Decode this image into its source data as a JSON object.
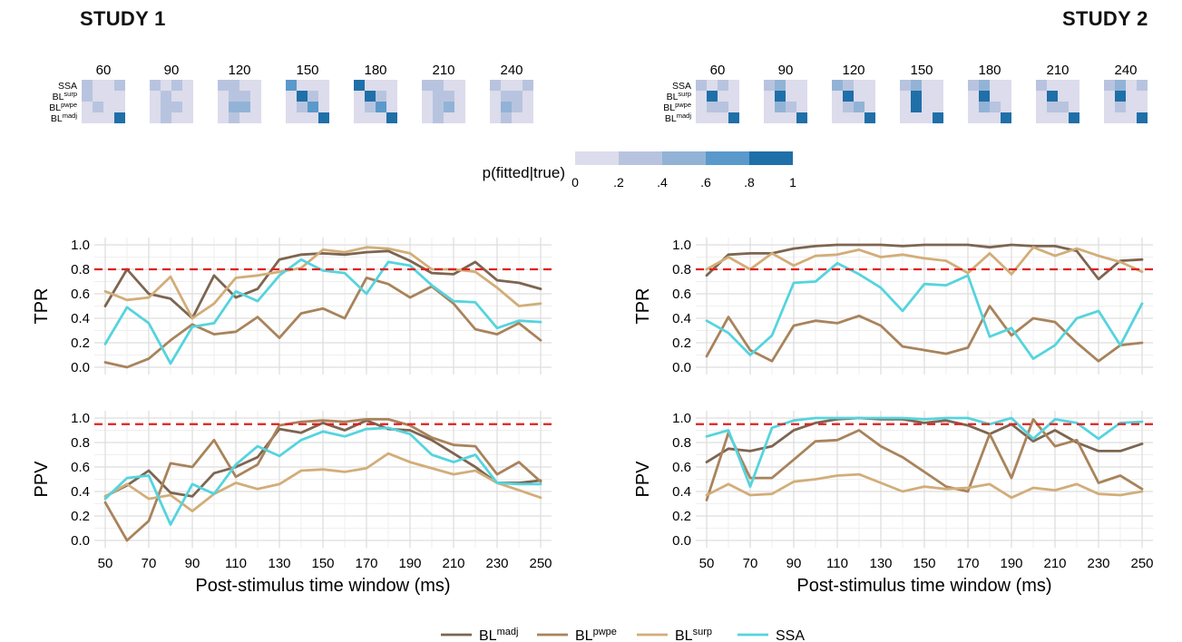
{
  "studies": [
    {
      "title": "STUDY 1"
    },
    {
      "title": "STUDY 2"
    }
  ],
  "confusion": {
    "windows": [
      "60",
      "90",
      "120",
      "150",
      "180",
      "210",
      "240"
    ],
    "row_labels": [
      {
        "base": "SSA",
        "sup": ""
      },
      {
        "base": "BL",
        "sup": "surp"
      },
      {
        "base": "BL",
        "sup": "pwpe"
      },
      {
        "base": "BL",
        "sup": "madj"
      }
    ],
    "colorbar": {
      "label": "p(fitted|true)",
      "ticks": [
        "0",
        ".2",
        ".4",
        ".6",
        ".8",
        "1"
      ],
      "colors": [
        "#dcdcec",
        "#b8c4df",
        "#92b3d6",
        "#5a99cb",
        "#1f6fa8"
      ]
    },
    "matrices": {
      "study1": [
        [
          [
            1,
            0,
            0,
            1
          ],
          [
            1,
            0,
            0,
            0
          ],
          [
            0,
            1,
            0,
            0
          ],
          [
            0,
            0,
            0,
            4
          ]
        ],
        [
          [
            1,
            0,
            1,
            0
          ],
          [
            0,
            1,
            0,
            0
          ],
          [
            0,
            1,
            1,
            0
          ],
          [
            0,
            1,
            0,
            0
          ]
        ],
        [
          [
            1,
            1,
            0,
            0
          ],
          [
            0,
            1,
            1,
            0
          ],
          [
            0,
            2,
            2,
            0
          ],
          [
            0,
            1,
            0,
            0
          ]
        ],
        [
          [
            3,
            0,
            0,
            0
          ],
          [
            0,
            4,
            1,
            0
          ],
          [
            0,
            1,
            3,
            0
          ],
          [
            0,
            0,
            0,
            4
          ]
        ],
        [
          [
            4,
            0,
            0,
            0
          ],
          [
            0,
            4,
            1,
            0
          ],
          [
            0,
            1,
            3,
            0
          ],
          [
            0,
            0,
            0,
            4
          ]
        ],
        [
          [
            1,
            1,
            0,
            0
          ],
          [
            0,
            1,
            1,
            0
          ],
          [
            0,
            1,
            2,
            0
          ],
          [
            0,
            1,
            0,
            0
          ]
        ],
        [
          [
            1,
            0,
            0,
            1
          ],
          [
            0,
            1,
            1,
            0
          ],
          [
            0,
            2,
            1,
            0
          ],
          [
            0,
            1,
            0,
            0
          ]
        ]
      ],
      "study2": [
        [
          [
            1,
            0,
            1,
            0
          ],
          [
            0,
            4,
            0,
            0
          ],
          [
            0,
            1,
            1,
            0
          ],
          [
            0,
            0,
            0,
            4
          ]
        ],
        [
          [
            1,
            2,
            0,
            0
          ],
          [
            0,
            4,
            0,
            0
          ],
          [
            0,
            2,
            1,
            0
          ],
          [
            0,
            0,
            0,
            4
          ]
        ],
        [
          [
            2,
            1,
            0,
            0
          ],
          [
            0,
            4,
            0,
            0
          ],
          [
            0,
            1,
            2,
            0
          ],
          [
            0,
            0,
            0,
            4
          ]
        ],
        [
          [
            1,
            2,
            0,
            0
          ],
          [
            0,
            4,
            0,
            0
          ],
          [
            0,
            4,
            0,
            0
          ],
          [
            0,
            0,
            0,
            4
          ]
        ],
        [
          [
            1,
            2,
            0,
            0
          ],
          [
            0,
            4,
            0,
            0
          ],
          [
            0,
            2,
            1,
            0
          ],
          [
            0,
            0,
            0,
            4
          ]
        ],
        [
          [
            1,
            0,
            0,
            0
          ],
          [
            0,
            4,
            0,
            0
          ],
          [
            0,
            1,
            1,
            0
          ],
          [
            0,
            0,
            0,
            4
          ]
        ],
        [
          [
            1,
            2,
            0,
            1
          ],
          [
            0,
            4,
            0,
            0
          ],
          [
            0,
            1,
            0,
            0
          ],
          [
            0,
            0,
            0,
            4
          ]
        ]
      ]
    }
  },
  "chart_data": [
    {
      "type": "line",
      "study": "STUDY 1",
      "ylabel": "TPR",
      "xlabel": "Post-stimulus time window (ms)",
      "x": [
        50,
        60,
        70,
        80,
        90,
        100,
        110,
        120,
        130,
        140,
        150,
        160,
        170,
        180,
        190,
        200,
        210,
        220,
        230,
        240,
        250
      ],
      "xticks": [
        "50",
        "70",
        "90",
        "110",
        "130",
        "150",
        "170",
        "190",
        "210",
        "230",
        "250"
      ],
      "yticks": [
        "0.0",
        "0.2",
        "0.4",
        "0.6",
        "0.8",
        "1.0"
      ],
      "ylim": [
        0,
        1
      ],
      "reference_line": 0.8,
      "series": [
        {
          "name": "BL^madj",
          "values": [
            0.5,
            0.8,
            0.6,
            0.56,
            0.4,
            0.75,
            0.57,
            0.64,
            0.88,
            0.92,
            0.93,
            0.92,
            0.94,
            0.95,
            0.87,
            0.77,
            0.76,
            0.86,
            0.71,
            0.69,
            0.64
          ]
        },
        {
          "name": "BL^pwpe",
          "values": [
            0.04,
            0.0,
            0.07,
            0.22,
            0.35,
            0.27,
            0.29,
            0.41,
            0.24,
            0.44,
            0.48,
            0.4,
            0.73,
            0.68,
            0.57,
            0.66,
            0.52,
            0.31,
            0.27,
            0.36,
            0.22
          ]
        },
        {
          "name": "BL^surp",
          "values": [
            0.62,
            0.55,
            0.57,
            0.74,
            0.4,
            0.52,
            0.73,
            0.75,
            0.78,
            0.81,
            0.96,
            0.94,
            0.98,
            0.97,
            0.93,
            0.8,
            0.8,
            0.78,
            0.65,
            0.5,
            0.52
          ]
        },
        {
          "name": "SSA",
          "values": [
            0.19,
            0.49,
            0.36,
            0.03,
            0.33,
            0.36,
            0.62,
            0.54,
            0.75,
            0.88,
            0.79,
            0.77,
            0.6,
            0.86,
            0.83,
            0.67,
            0.54,
            0.53,
            0.32,
            0.38,
            0.37
          ]
        }
      ]
    },
    {
      "type": "line",
      "study": "STUDY 1",
      "ylabel": "PPV",
      "xlabel": "Post-stimulus time window (ms)",
      "x": [
        50,
        60,
        70,
        80,
        90,
        100,
        110,
        120,
        130,
        140,
        150,
        160,
        170,
        180,
        190,
        200,
        210,
        220,
        230,
        240,
        250
      ],
      "xticks": [
        "50",
        "70",
        "90",
        "110",
        "130",
        "150",
        "170",
        "190",
        "210",
        "230",
        "250"
      ],
      "yticks": [
        "0.0",
        "0.2",
        "0.4",
        "0.6",
        "0.8",
        "1.0"
      ],
      "ylim": [
        0,
        1
      ],
      "reference_line": 0.95,
      "series": [
        {
          "name": "BL^madj",
          "values": [
            0.36,
            0.45,
            0.57,
            0.39,
            0.36,
            0.55,
            0.6,
            0.68,
            0.91,
            0.88,
            0.96,
            0.9,
            0.98,
            0.91,
            0.9,
            0.82,
            0.71,
            0.6,
            0.47,
            0.47,
            0.49
          ]
        },
        {
          "name": "BL^pwpe",
          "values": [
            0.31,
            0.0,
            0.16,
            0.63,
            0.6,
            0.82,
            0.52,
            0.62,
            0.94,
            0.97,
            0.98,
            0.97,
            0.99,
            0.99,
            0.94,
            0.84,
            0.78,
            0.77,
            0.54,
            0.64,
            0.48
          ]
        },
        {
          "name": "BL^surp",
          "values": [
            0.36,
            0.46,
            0.34,
            0.37,
            0.24,
            0.38,
            0.47,
            0.42,
            0.46,
            0.57,
            0.58,
            0.56,
            0.59,
            0.71,
            0.64,
            0.59,
            0.54,
            0.57,
            0.47,
            0.41,
            0.35
          ]
        },
        {
          "name": "SSA",
          "values": [
            0.34,
            0.51,
            0.53,
            0.13,
            0.46,
            0.38,
            0.62,
            0.77,
            0.69,
            0.82,
            0.89,
            0.85,
            0.91,
            0.92,
            0.87,
            0.7,
            0.64,
            0.7,
            0.47,
            0.46,
            0.46
          ]
        }
      ]
    },
    {
      "type": "line",
      "study": "STUDY 2",
      "ylabel": "TPR",
      "xlabel": "Post-stimulus time window (ms)",
      "x": [
        50,
        60,
        70,
        80,
        90,
        100,
        110,
        120,
        130,
        140,
        150,
        160,
        170,
        180,
        190,
        200,
        210,
        220,
        230,
        240,
        250
      ],
      "xticks": [
        "50",
        "70",
        "90",
        "110",
        "130",
        "150",
        "170",
        "190",
        "210",
        "230",
        "250"
      ],
      "yticks": [
        "0.0",
        "0.2",
        "0.4",
        "0.6",
        "0.8",
        "1.0"
      ],
      "ylim": [
        0,
        1
      ],
      "reference_line": 0.8,
      "series": [
        {
          "name": "BL^madj",
          "values": [
            0.75,
            0.92,
            0.93,
            0.93,
            0.97,
            0.99,
            1.0,
            1.0,
            1.0,
            0.99,
            1.0,
            1.0,
            1.0,
            0.98,
            1.0,
            0.99,
            0.99,
            0.95,
            0.72,
            0.87,
            0.88
          ]
        },
        {
          "name": "BL^pwpe",
          "values": [
            0.09,
            0.41,
            0.14,
            0.05,
            0.34,
            0.38,
            0.36,
            0.42,
            0.34,
            0.17,
            0.14,
            0.11,
            0.16,
            0.5,
            0.26,
            0.4,
            0.37,
            0.2,
            0.05,
            0.18,
            0.2
          ]
        },
        {
          "name": "BL^surp",
          "values": [
            0.8,
            0.9,
            0.8,
            0.93,
            0.83,
            0.91,
            0.92,
            0.96,
            0.9,
            0.92,
            0.89,
            0.87,
            0.77,
            0.93,
            0.76,
            0.98,
            0.91,
            0.97,
            0.91,
            0.86,
            0.78
          ]
        },
        {
          "name": "SSA",
          "values": [
            0.38,
            0.28,
            0.1,
            0.26,
            0.69,
            0.7,
            0.85,
            0.76,
            0.65,
            0.46,
            0.68,
            0.67,
            0.75,
            0.25,
            0.32,
            0.07,
            0.18,
            0.4,
            0.46,
            0.18,
            0.52
          ]
        }
      ]
    },
    {
      "type": "line",
      "study": "STUDY 2",
      "ylabel": "PPV",
      "xlabel": "Post-stimulus time window (ms)",
      "x": [
        50,
        60,
        70,
        80,
        90,
        100,
        110,
        120,
        130,
        140,
        150,
        160,
        170,
        180,
        190,
        200,
        210,
        220,
        230,
        240,
        250
      ],
      "xticks": [
        "50",
        "70",
        "90",
        "110",
        "130",
        "150",
        "170",
        "190",
        "210",
        "230",
        "250"
      ],
      "yticks": [
        "0.0",
        "0.2",
        "0.4",
        "0.6",
        "0.8",
        "1.0"
      ],
      "ylim": [
        0,
        1
      ],
      "reference_line": 0.95,
      "series": [
        {
          "name": "BL^madj",
          "values": [
            0.64,
            0.75,
            0.73,
            0.77,
            0.9,
            0.96,
            0.99,
            1.0,
            0.99,
            0.99,
            0.96,
            0.98,
            0.94,
            0.87,
            0.95,
            0.81,
            0.9,
            0.8,
            0.73,
            0.73,
            0.79
          ]
        },
        {
          "name": "BL^pwpe",
          "values": [
            0.33,
            0.88,
            0.51,
            0.51,
            0.66,
            0.81,
            0.82,
            0.9,
            0.77,
            0.68,
            0.56,
            0.44,
            0.4,
            0.87,
            0.51,
            0.99,
            0.77,
            0.82,
            0.47,
            0.53,
            0.42
          ]
        },
        {
          "name": "BL^surp",
          "values": [
            0.37,
            0.46,
            0.37,
            0.38,
            0.48,
            0.5,
            0.53,
            0.54,
            0.47,
            0.4,
            0.44,
            0.42,
            0.43,
            0.46,
            0.35,
            0.43,
            0.41,
            0.46,
            0.38,
            0.37,
            0.4
          ]
        },
        {
          "name": "SSA",
          "values": [
            0.85,
            0.9,
            0.44,
            0.92,
            0.98,
            1.0,
            1.0,
            1.0,
            1.0,
            1.0,
            0.99,
            1.0,
            1.0,
            0.95,
            1.0,
            0.83,
            0.99,
            0.96,
            0.83,
            0.96,
            0.97
          ]
        }
      ]
    }
  ],
  "legend": [
    {
      "base": "BL",
      "sup": "madj",
      "color": "#7d6550"
    },
    {
      "base": "BL",
      "sup": "pwpe",
      "color": "#a9835b"
    },
    {
      "base": "BL",
      "sup": "surp",
      "color": "#d2ad79"
    },
    {
      "base": "SSA",
      "sup": "",
      "color": "#55d4de"
    }
  ],
  "reference_color": "#e02020"
}
